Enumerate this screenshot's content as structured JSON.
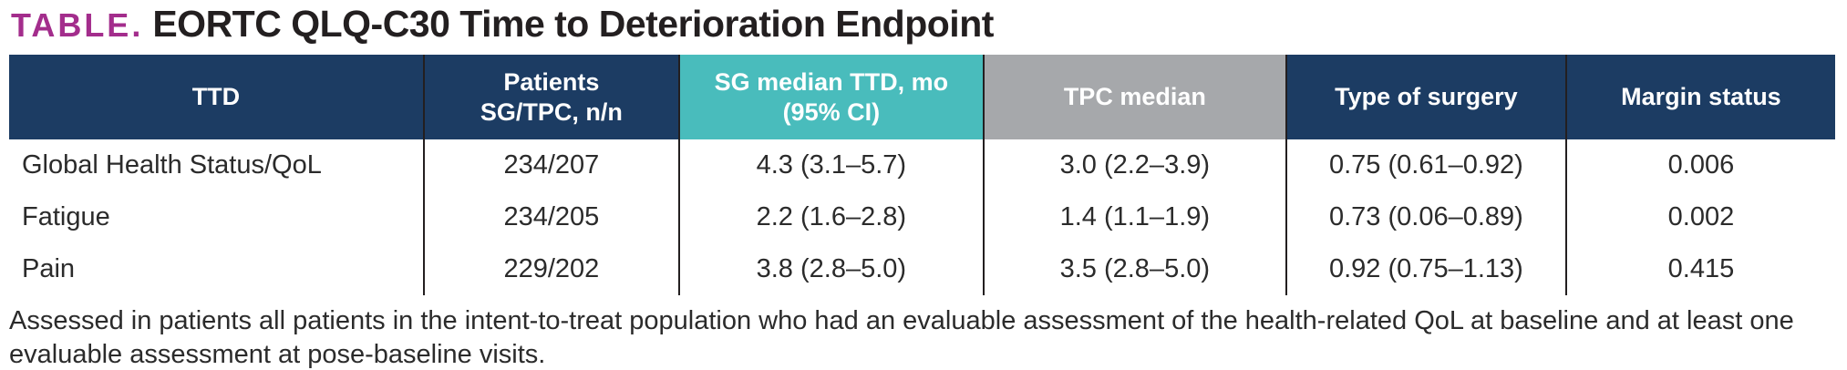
{
  "title": {
    "prefix": "TABLE.",
    "text": "EORTC QLQ-C30 Time to Deterioration Endpoint"
  },
  "colors": {
    "navy": "#1C3C63",
    "teal": "#49BCBC",
    "gray": "#A6A8AB",
    "magenta": "#A32D8C",
    "divider": "#231F20"
  },
  "table": {
    "columns": [
      {
        "id": "ttd",
        "bg": "navy",
        "label_lines": [
          "TTD"
        ]
      },
      {
        "id": "patients",
        "bg": "navy",
        "label_lines": [
          "Patients",
          "SG/TPC, n/n"
        ]
      },
      {
        "id": "sg-median-ttd",
        "bg": "teal",
        "label_lines": [
          "SG median TTD, mo",
          "(95% CI)"
        ]
      },
      {
        "id": "tpc-median",
        "bg": "gray",
        "label_lines": [
          "TPC median"
        ]
      },
      {
        "id": "type-of-surgery",
        "bg": "navy",
        "label_lines": [
          "Type of surgery"
        ]
      },
      {
        "id": "margin-status",
        "bg": "navy",
        "label_lines": [
          "Margin status"
        ]
      }
    ],
    "rows": [
      {
        "cells": [
          "Global Health Status/QoL",
          "234/207",
          "4.3 (3.1–5.7)",
          "3.0 (2.2–3.9)",
          "0.75 (0.61–0.92)",
          "0.006"
        ]
      },
      {
        "cells": [
          "Fatigue",
          "234/205",
          "2.2 (1.6–2.8)",
          "1.4 (1.1–1.9)",
          "0.73 (0.06–0.89)",
          "0.002"
        ]
      },
      {
        "cells": [
          "Pain",
          "229/202",
          "3.8 (2.8–5.0)",
          "3.5 (2.8–5.0)",
          "0.92 (0.75–1.13)",
          "0.415"
        ]
      }
    ]
  },
  "footnote": "Assessed in patients all patients in the intent-to-treat population who had an evaluable assessment of the health-related QoL at baseline and at least one evaluable assessment at pose-baseline visits."
}
